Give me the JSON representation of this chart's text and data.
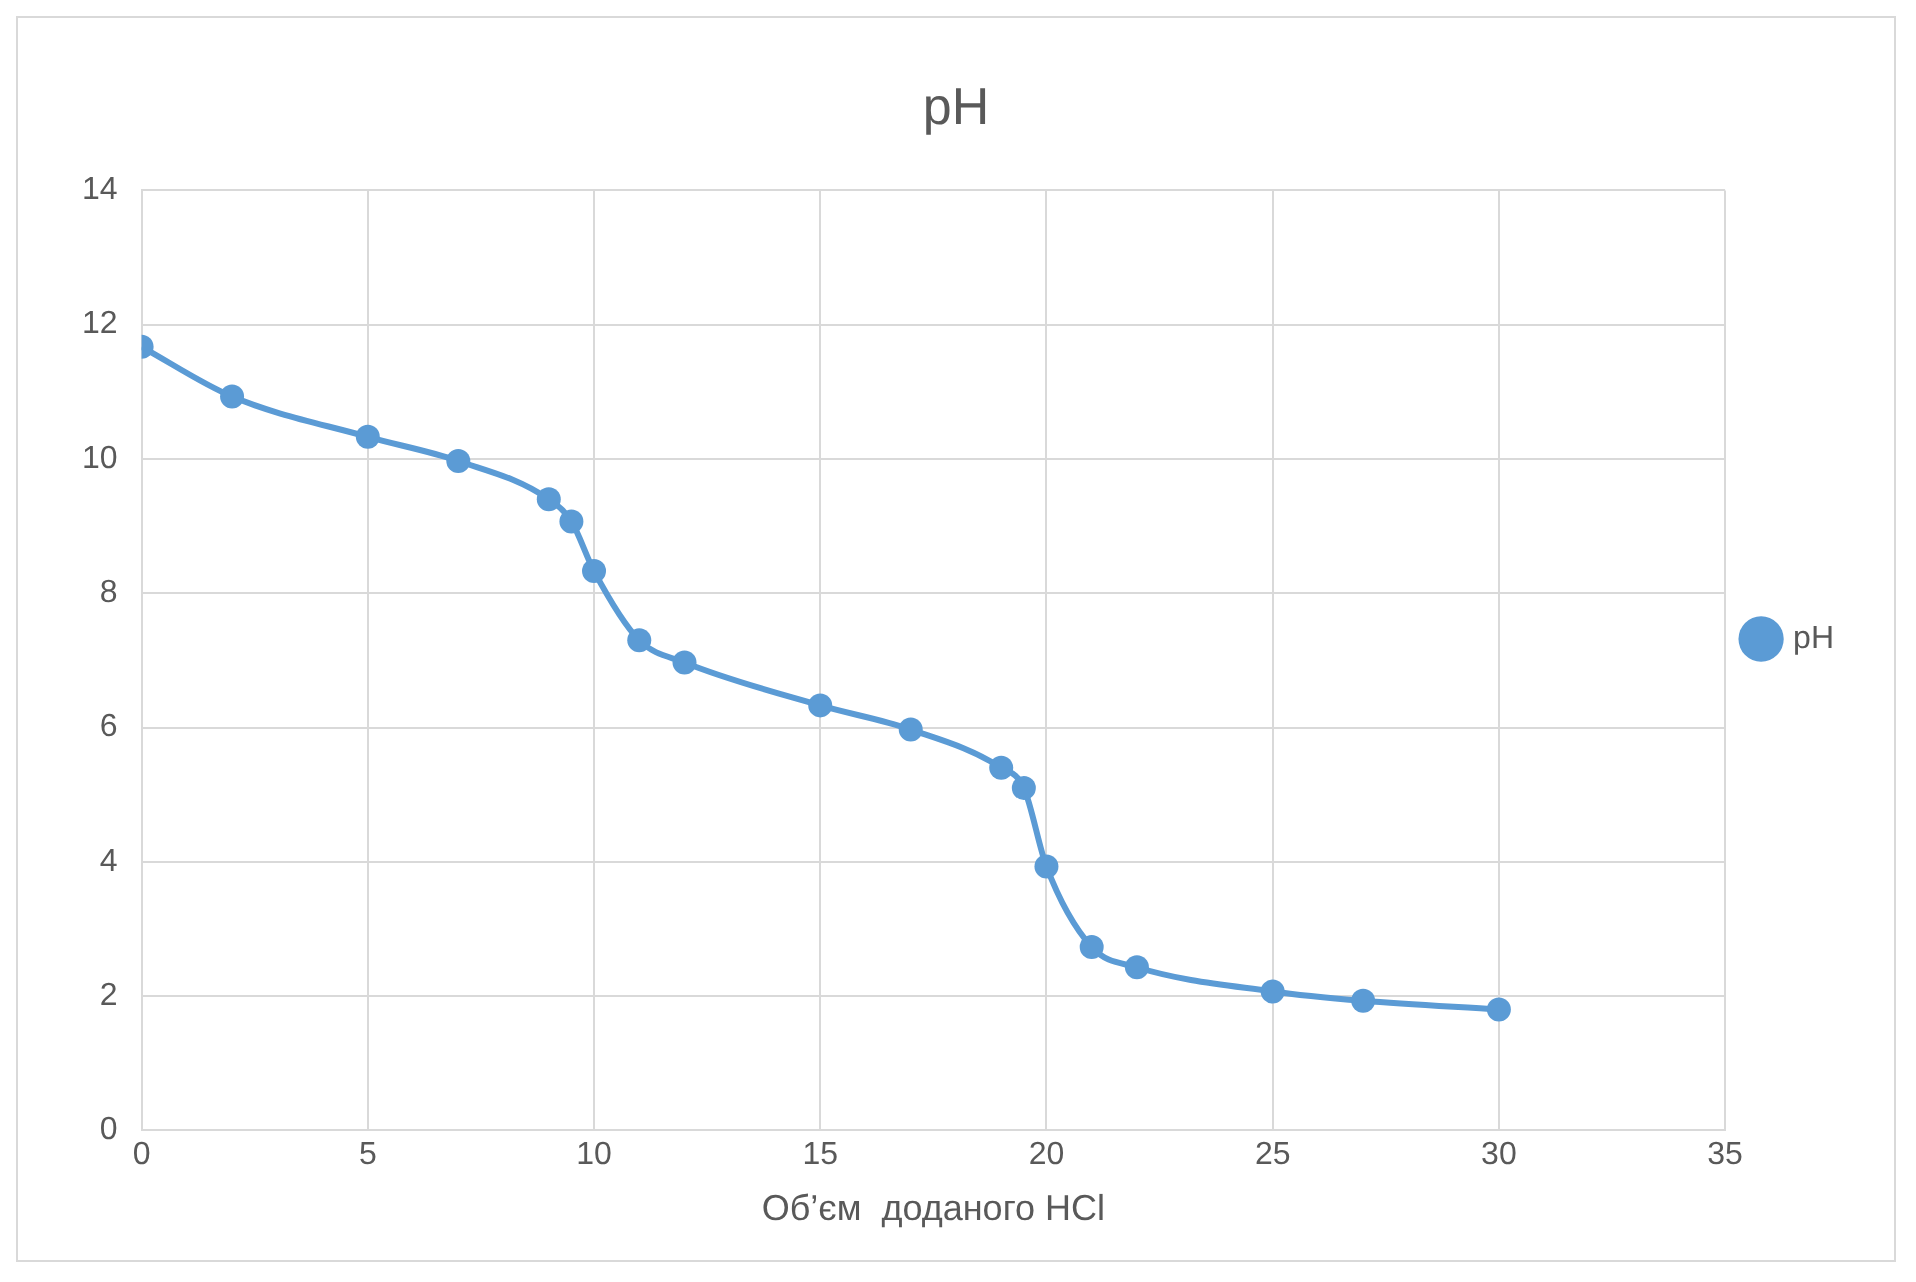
{
  "chart_data": {
    "type": "line",
    "title": "pH",
    "xlabel": "Об’єм  доданого HCl",
    "x": [
      0,
      2,
      5,
      7,
      9,
      9.5,
      10,
      11,
      12,
      15,
      17,
      19,
      19.5,
      20,
      21,
      22,
      25,
      27,
      30
    ],
    "series": [
      {
        "name": "pH",
        "color": "#5b9bd5",
        "values": [
          11.67,
          10.93,
          10.33,
          9.97,
          9.4,
          9.07,
          8.33,
          7.3,
          6.97,
          6.33,
          5.97,
          5.4,
          5.1,
          3.93,
          2.73,
          2.43,
          2.07,
          1.93,
          1.8
        ]
      }
    ],
    "xlim": [
      0,
      35
    ],
    "xticks": [
      0,
      5,
      10,
      15,
      20,
      25,
      30,
      35
    ],
    "ylim": [
      0,
      14
    ],
    "yticks": [
      0,
      2,
      4,
      6,
      8,
      10,
      12,
      14
    ],
    "grid": true,
    "legend": "right",
    "marker": "circle",
    "line_style": "solid"
  }
}
